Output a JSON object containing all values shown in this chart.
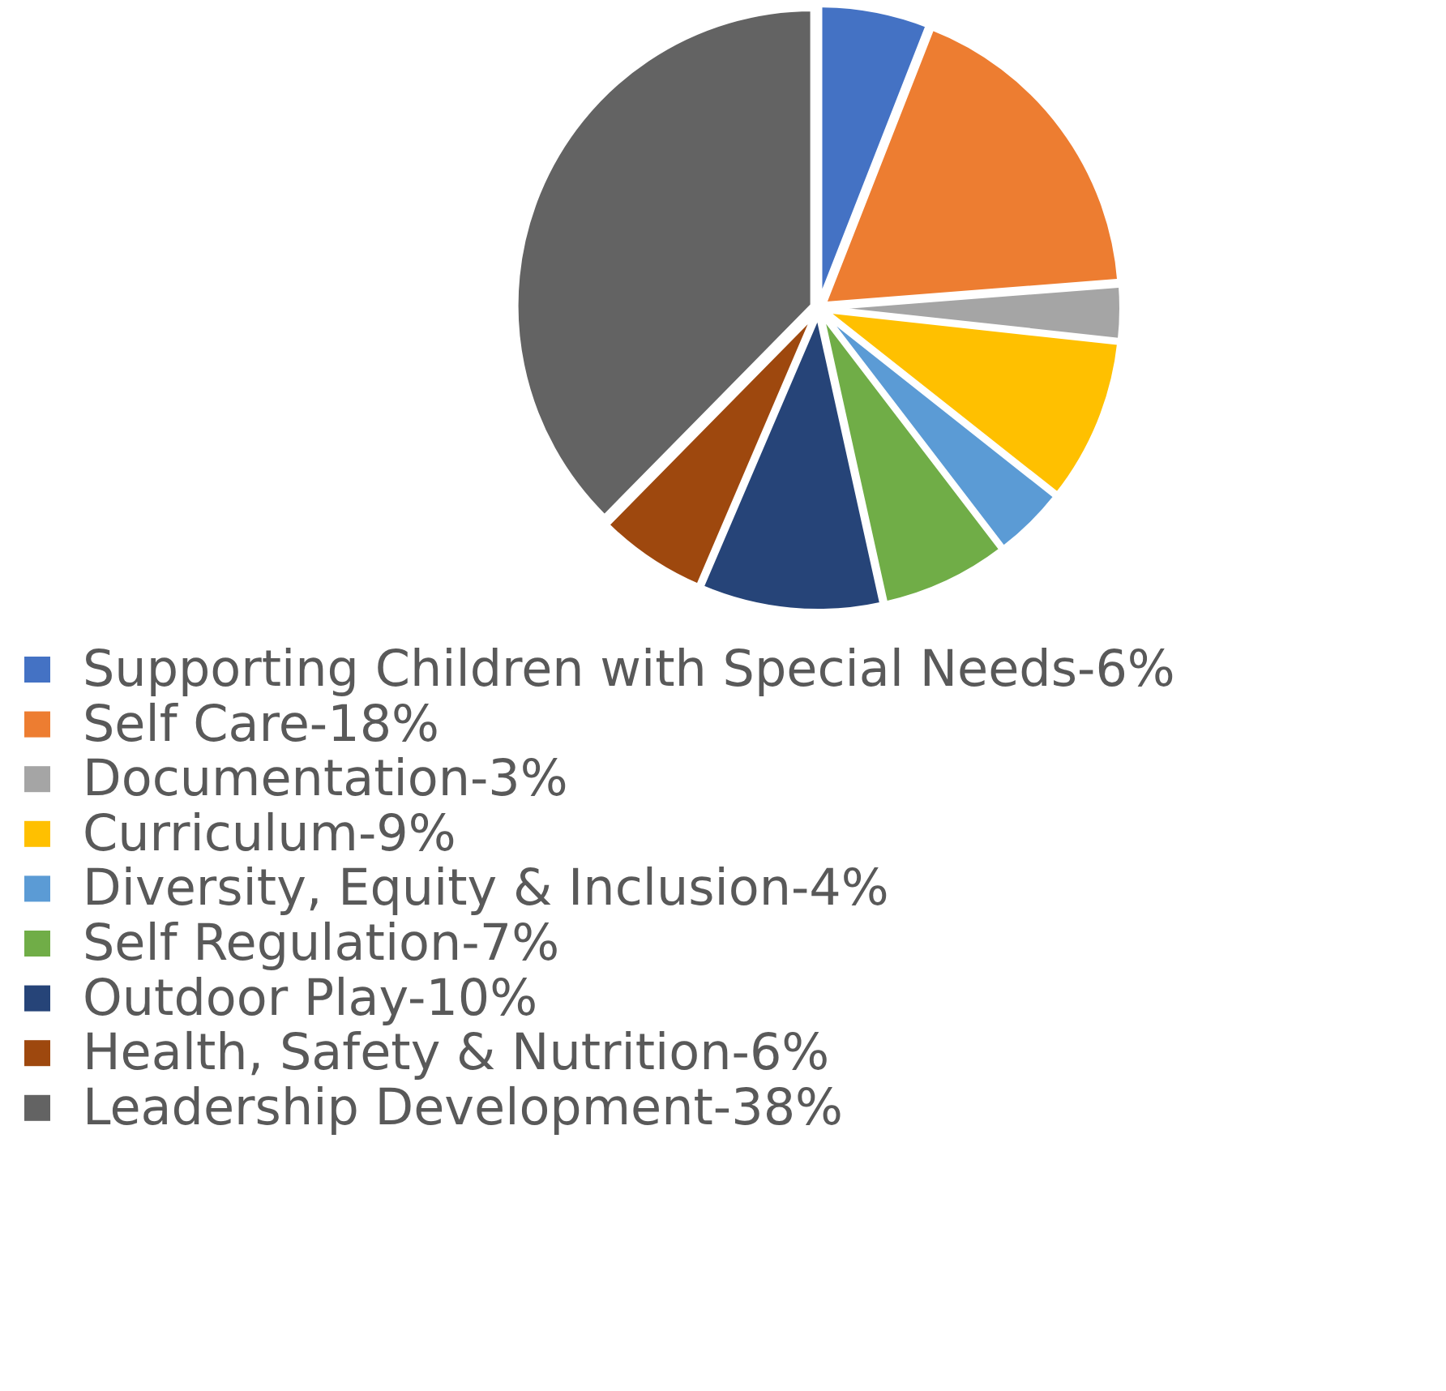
{
  "chart_data": {
    "type": "pie",
    "legend": "bottom",
    "categories": [
      "Supporting Children with Special Needs-6%",
      "Self Care-18%",
      "Documentation-3%",
      "Curriculum-9%",
      "Diversity, Equity & Inclusion-4%",
      "Self Regulation-7%",
      "Outdoor Play-10%",
      "Health, Safety & Nutrition-6%",
      "Leadership Development-38%"
    ],
    "values": [
      6,
      18,
      3,
      9,
      4,
      7,
      10,
      6,
      38
    ],
    "colors": [
      "#4472c4",
      "#ed7d31",
      "#a5a5a5",
      "#ffc000",
      "#5b9bd5",
      "#70ad47",
      "#264478",
      "#9e480e",
      "#636363"
    ]
  }
}
